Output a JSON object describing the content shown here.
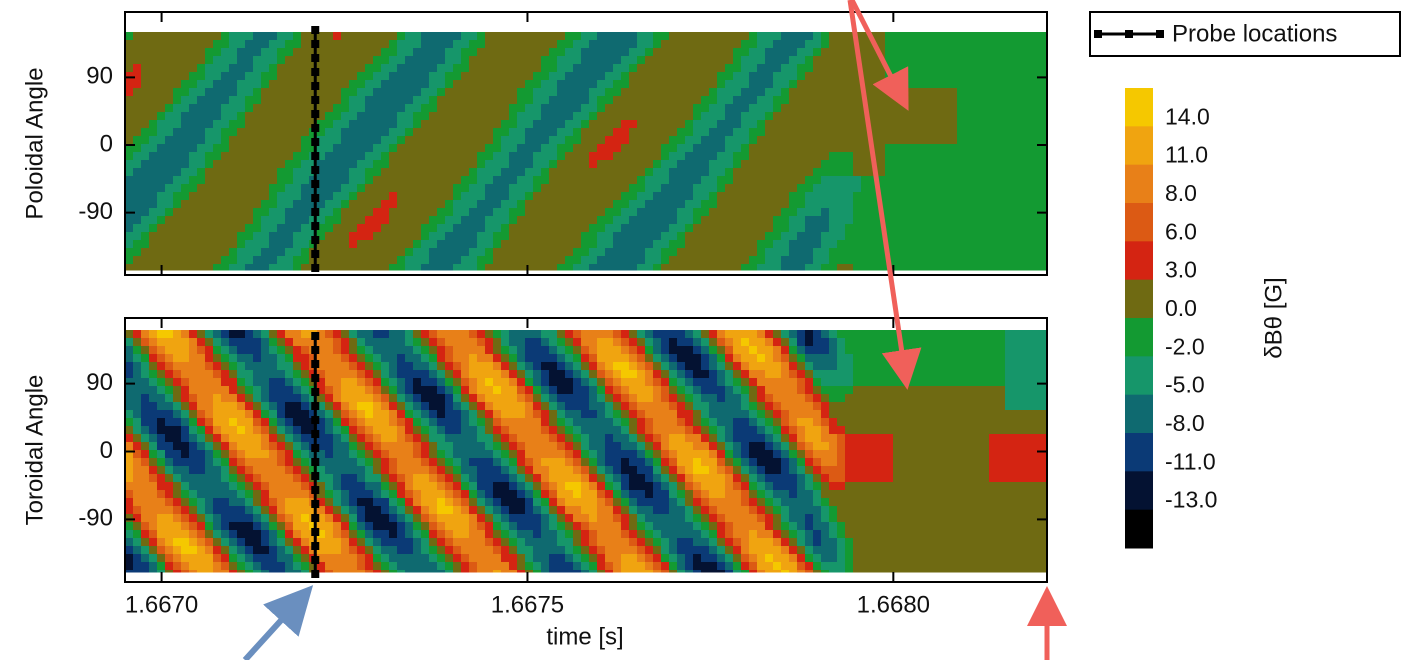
{
  "chart_data": {
    "type": "contour",
    "xlabel": "time [s]",
    "xlim": [
      1.66695,
      1.66821
    ],
    "xticks": [
      {
        "value": 1.667,
        "label": "1.6670"
      },
      {
        "value": 1.6675,
        "label": "1.6675"
      },
      {
        "value": 1.668,
        "label": "1.6680"
      }
    ],
    "panels": [
      {
        "ylabel": "Poloidal Angle",
        "ylim": [
          -173,
          177
        ],
        "yticks": [
          90,
          0,
          -90
        ]
      },
      {
        "ylabel": "Toroidal Angle",
        "ylim": [
          -173,
          177
        ],
        "yticks": [
          90,
          0,
          -90
        ]
      }
    ],
    "probe": {
      "name": "Probe locations",
      "time": 1.66721,
      "color": "#000000"
    },
    "colorbar": {
      "label": "δBθ [G]",
      "levels": [
        {
          "value": 14,
          "label": "14.0"
        },
        {
          "value": 11,
          "label": "11.0"
        },
        {
          "value": 8,
          "label": "8.0"
        },
        {
          "value": 6,
          "label": "6.0"
        },
        {
          "value": 3,
          "label": "3.0"
        },
        {
          "value": 0,
          "label": "0.0"
        },
        {
          "value": -2,
          "label": "-2.0"
        },
        {
          "value": -5,
          "label": "-5.0"
        },
        {
          "value": -8,
          "label": "-8.0"
        },
        {
          "value": -11,
          "label": "-11.0"
        },
        {
          "value": -13,
          "label": "-13.0"
        }
      ],
      "colors": [
        "#f5c800",
        "#f0a410",
        "#e88018",
        "#dc5a14",
        "#d42412",
        "#6f6a12",
        "#139a32",
        "#16966a",
        "#0f6a70",
        "#0b3a76",
        "#041232",
        "#000000"
      ]
    }
  }
}
